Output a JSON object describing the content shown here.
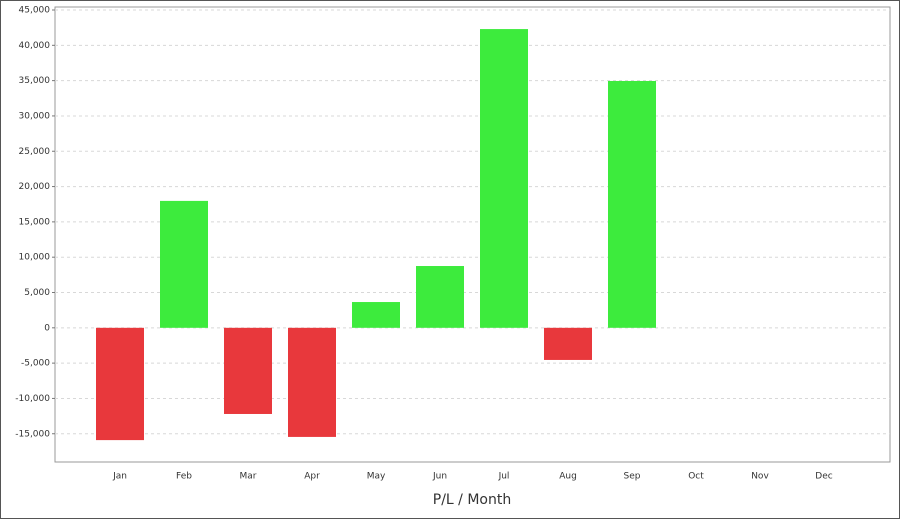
{
  "chart_data": {
    "type": "bar",
    "x_label": "P/L / Month",
    "categories": [
      "Jan",
      "Feb",
      "Mar",
      "Apr",
      "May",
      "Jun",
      "Jul",
      "Aug",
      "Sep",
      "Oct",
      "Nov",
      "Dec"
    ],
    "values": [
      -15900,
      17970,
      -12200,
      -15450,
      3650,
      8750,
      42300,
      -4550,
      34950,
      null,
      null,
      null
    ],
    "positive_color": "#3deb3d",
    "negative_color": "#e8383c",
    "ylim": [
      -19000,
      45000
    ],
    "yticks": [
      {
        "value": -15000,
        "label": "-15,000"
      },
      {
        "value": -10000,
        "label": "-10,000"
      },
      {
        "value": -5000,
        "label": "-5,000"
      },
      0,
      {
        "value": 5000,
        "label": "5,000"
      },
      {
        "value": 10000,
        "label": "10,000"
      },
      {
        "value": 15000,
        "label": "15,000"
      },
      {
        "value": 20000,
        "label": "20,000"
      },
      {
        "value": 25000,
        "label": "25,000"
      },
      {
        "value": 30000,
        "label": "30,000"
      },
      {
        "value": 35000,
        "label": "35,000"
      },
      {
        "value": 40000,
        "label": "40,000"
      },
      {
        "value": 45000,
        "label": "45,000"
      }
    ],
    "grid": true
  }
}
